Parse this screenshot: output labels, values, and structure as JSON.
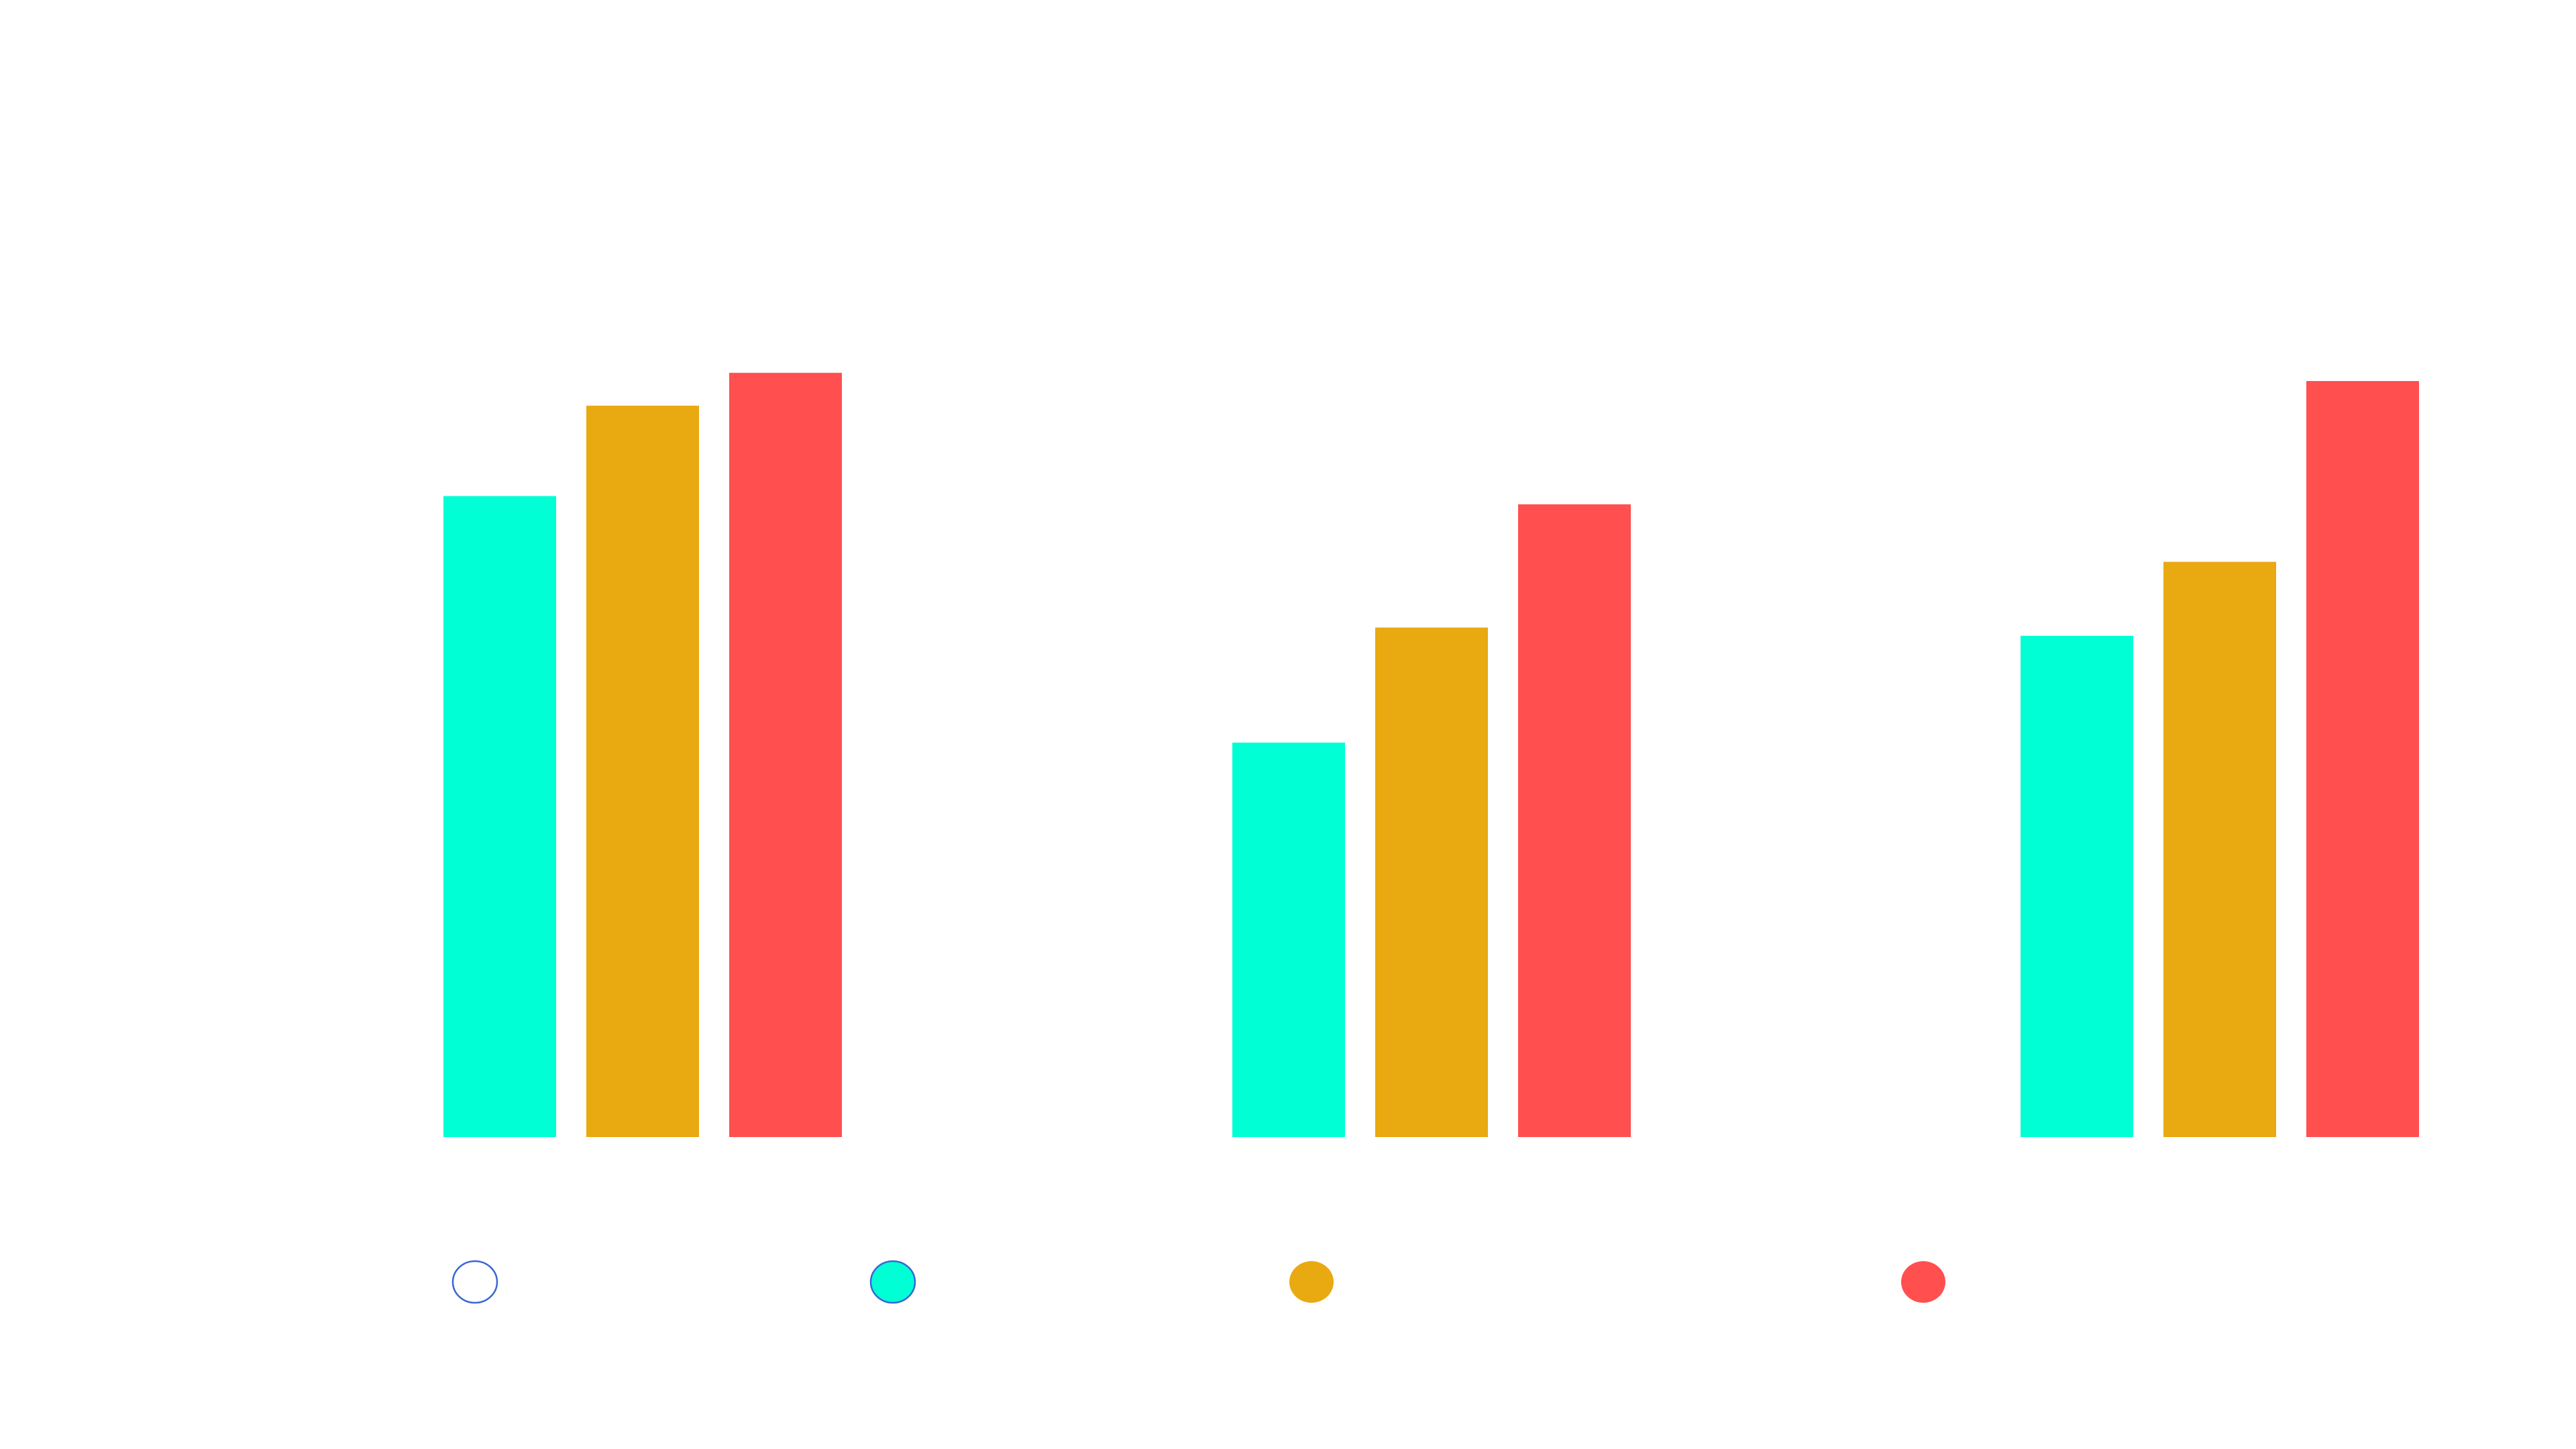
{
  "chart_data": {
    "type": "bar",
    "title": "",
    "xlabel": "",
    "ylabel": "",
    "ylim": [
      0,
      100
    ],
    "grid": false,
    "legend_placement": "bottom",
    "categories": [
      "",
      "",
      ""
    ],
    "series": [
      {
        "color": "#00FFD5",
        "values": [
          78,
          48,
          61
        ]
      },
      {
        "color": "#E9A910",
        "values": [
          89,
          62,
          70
        ]
      },
      {
        "color": "#FF4F4F",
        "values": [
          93,
          77,
          92
        ]
      }
    ],
    "legend": [
      {
        "fill": "#FFFFFF",
        "stroke": "#3A66D4"
      },
      {
        "fill": "#00FFD5",
        "stroke": "#3A66D4"
      },
      {
        "fill": "#E9A910",
        "stroke": "none"
      },
      {
        "fill": "#FF4F4F",
        "stroke": "none"
      }
    ]
  }
}
